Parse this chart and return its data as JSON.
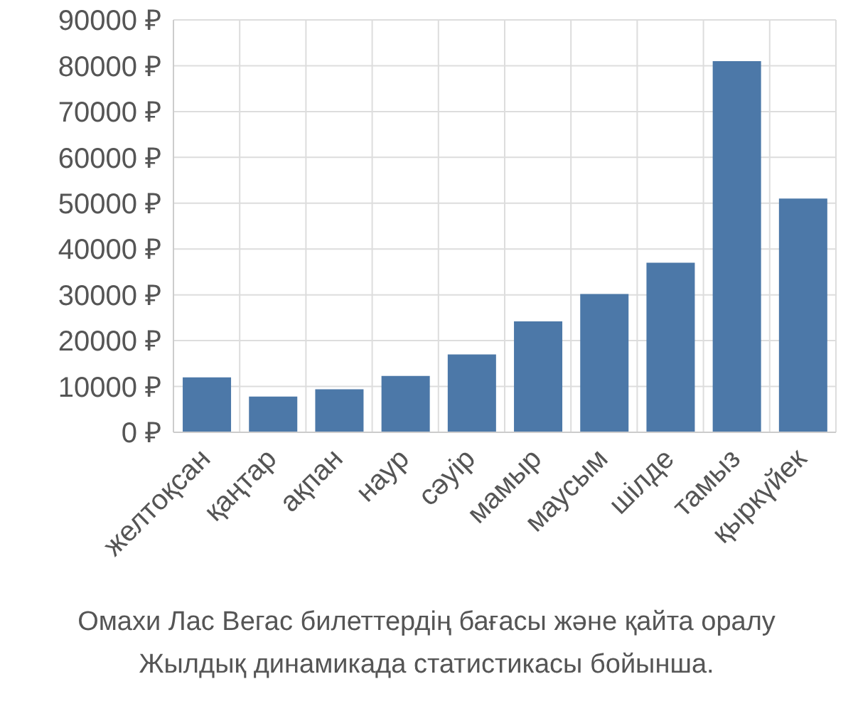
{
  "chart_data": {
    "type": "bar",
    "categories": [
      "желтоқсан",
      "қаңтар",
      "ақпан",
      "наур",
      "сәуір",
      "мамыр",
      "маусым",
      "шілде",
      "тамыз",
      "қыркүйек"
    ],
    "values": [
      12000,
      7800,
      9400,
      12300,
      17000,
      24200,
      30200,
      37000,
      81000,
      51000
    ],
    "color": "#4c78a8",
    "ylim": [
      0,
      90000
    ],
    "yticks": [
      {
        "value": 0,
        "label": "0 ₽"
      },
      {
        "value": 10000,
        "label": "10000 ₽"
      },
      {
        "value": 20000,
        "label": "20000 ₽"
      },
      {
        "value": 30000,
        "label": "30000 ₽"
      },
      {
        "value": 40000,
        "label": "40000 ₽"
      },
      {
        "value": 50000,
        "label": "50000 ₽"
      },
      {
        "value": 60000,
        "label": "60000 ₽"
      },
      {
        "value": 70000,
        "label": "70000 ₽"
      },
      {
        "value": 80000,
        "label": "80000 ₽"
      },
      {
        "value": 90000,
        "label": "90000 ₽"
      }
    ],
    "grid": true,
    "annotations": [
      "Омахи Лас Вегас билеттердің бағасы және қайта оралу",
      "Жылдық динамикада статистикасы бойынша."
    ]
  }
}
